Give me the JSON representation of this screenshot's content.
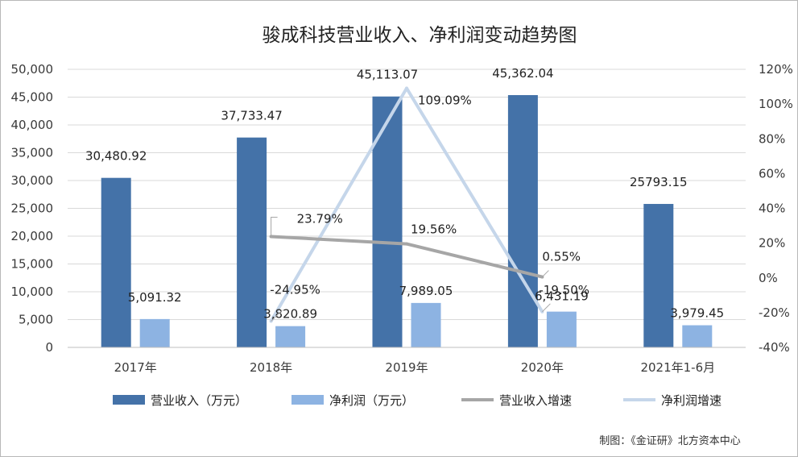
{
  "chart_data": {
    "type": "bar",
    "title": "骏成科技营业收入、净利润变动趋势图",
    "categories": [
      "2017年",
      "2018年",
      "2019年",
      "2020年",
      "2021年1-6月"
    ],
    "series": [
      {
        "name": "营业收入（万元）",
        "kind": "bar",
        "axis": "left",
        "color": "#4472a8",
        "values": [
          30480.92,
          37733.47,
          45113.07,
          45362.04,
          25793.15
        ],
        "labels": [
          "30,480.92",
          "37,733.47",
          "45,113.07",
          "45,362.04",
          "25793.15"
        ]
      },
      {
        "name": "净利润（万元）",
        "kind": "bar",
        "axis": "left",
        "color": "#8db3e2",
        "values": [
          5091.32,
          3820.89,
          7989.05,
          6431.19,
          3979.45
        ],
        "labels": [
          "5,091.32",
          "3,820.89",
          "7,989.05",
          "6,431.19",
          "3,979.45"
        ]
      },
      {
        "name": "营业收入增速",
        "kind": "line",
        "axis": "right",
        "color": "#a6a6a6",
        "values": [
          null,
          23.79,
          19.56,
          0.55,
          null
        ],
        "labels": [
          "",
          "23.79%",
          "19.56%",
          "0.55%",
          ""
        ]
      },
      {
        "name": "净利润增速",
        "kind": "line",
        "axis": "right",
        "color": "#c5d6ea",
        "values": [
          null,
          -24.95,
          109.09,
          -19.5,
          null
        ],
        "labels": [
          "",
          "-24.95%",
          "109.09%",
          "-19.50%",
          ""
        ]
      }
    ],
    "left_axis": {
      "min": 0,
      "max": 50000,
      "step": 5000,
      "ticks": [
        "0",
        "5,000",
        "10,000",
        "15,000",
        "20,000",
        "25,000",
        "30,000",
        "35,000",
        "40,000",
        "45,000",
        "50,000"
      ]
    },
    "right_axis": {
      "min": -40,
      "max": 120,
      "step": 20,
      "ticks": [
        "-40%",
        "-20%",
        "0%",
        "20%",
        "40%",
        "60%",
        "80%",
        "100%",
        "120%"
      ]
    },
    "grid": true,
    "legend_position": "bottom"
  },
  "credit": "制图：《金证研》北方资本中心"
}
